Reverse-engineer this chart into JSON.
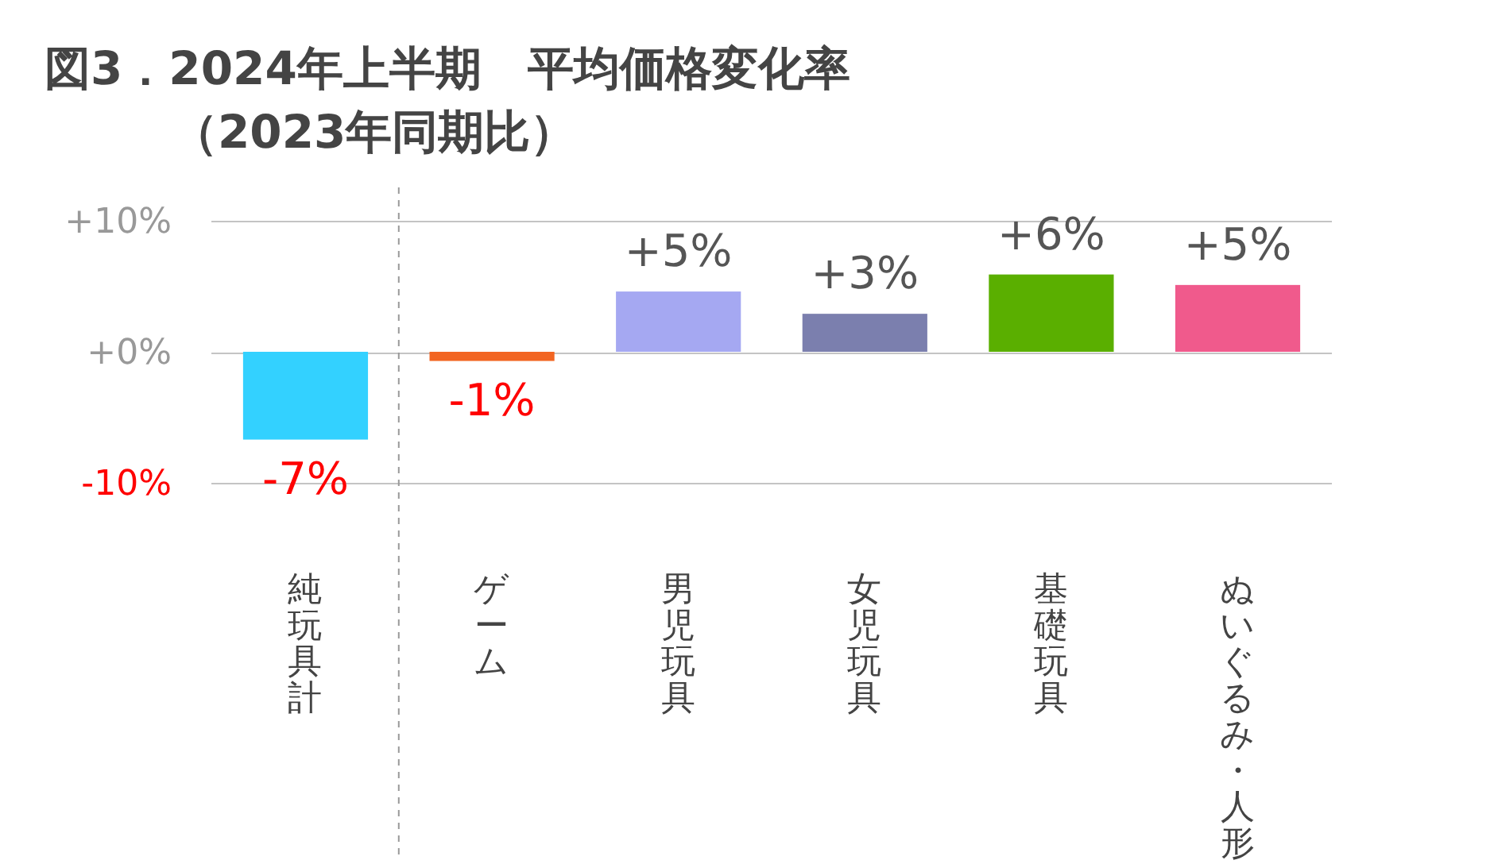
{
  "chart_data": {
    "type": "bar",
    "title": "図3．2024年上半期　平均価格変化率",
    "subtitle": "（2023年同期比）",
    "categories": [
      "純玩具計",
      "ゲーム",
      "男児玩具",
      "女児玩具",
      "基礎玩具",
      "ぬいぐるみ・人形"
    ],
    "values": [
      -6.7,
      -0.7,
      4.6,
      2.9,
      5.9,
      5.1
    ],
    "colors": [
      "#33d1ff",
      "#f26522",
      "#a5a8f2",
      "#7b7fae",
      "#5aaf00",
      "#f05a8c"
    ],
    "value_labels": [
      "-7%",
      "-1%",
      "+5%",
      "+3%",
      "+6%",
      "+5%"
    ],
    "ylim": [
      -10,
      10
    ],
    "yticks": [
      {
        "value": 10,
        "label": "+10%"
      },
      {
        "value": 0,
        "label": "+0%"
      },
      {
        "value": -10,
        "label": "-10%"
      }
    ],
    "grid": "y"
  }
}
